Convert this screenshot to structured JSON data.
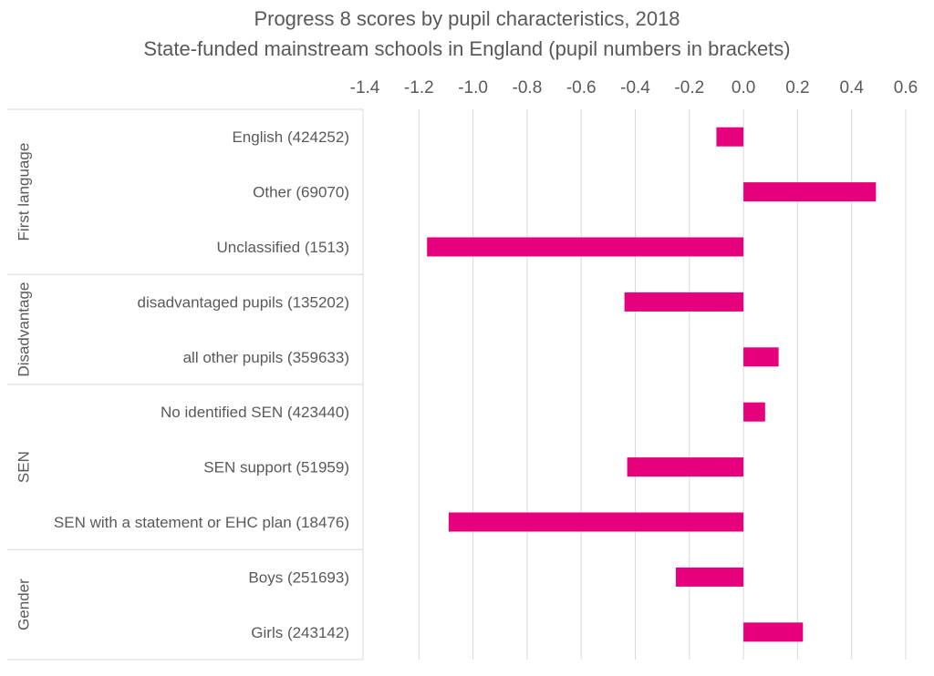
{
  "chart_data": {
    "type": "bar",
    "orientation": "horizontal",
    "title": "Progress 8 scores by pupil characteristics, 2018",
    "subtitle": "State-funded mainstream schools in England (pupil numbers in brackets)",
    "xlim": [
      -1.4,
      0.6
    ],
    "ticks": [
      "-1.4",
      "-1.2",
      "-1.0",
      "-0.8",
      "-0.6",
      "-0.4",
      "-0.2",
      "0.0",
      "0.2",
      "0.4",
      "0.6"
    ],
    "tick_values": [
      -1.4,
      -1.2,
      -1.0,
      -0.8,
      -0.6,
      -0.4,
      -0.2,
      0.0,
      0.2,
      0.4,
      0.6
    ],
    "grid": true,
    "bar_color": "#e6007e",
    "groups": [
      {
        "name": "First language",
        "categories": [
          "English (424252)",
          "Other (69070)",
          "Unclassified (1513)"
        ],
        "values": [
          -0.1,
          0.49,
          -1.17
        ]
      },
      {
        "name": "Disadvantage",
        "categories": [
          "disadvantaged pupils (135202)",
          "all other pupils (359633)"
        ],
        "values": [
          -0.44,
          0.13
        ]
      },
      {
        "name": "SEN",
        "categories": [
          "No identified SEN (423440)",
          "SEN support (51959)",
          "SEN with a statement or EHC plan (18476)"
        ],
        "values": [
          0.08,
          -0.43,
          -1.09
        ]
      },
      {
        "name": "Gender",
        "categories": [
          "Boys (251693)",
          "Girls (243142)"
        ],
        "values": [
          -0.25,
          0.22
        ]
      }
    ]
  }
}
